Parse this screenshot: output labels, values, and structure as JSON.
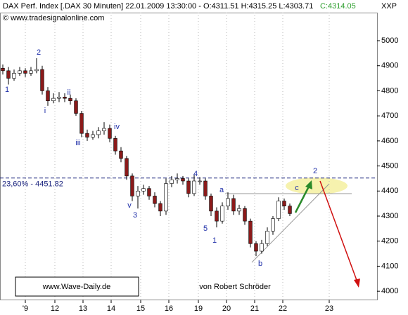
{
  "chart_data": {
    "type": "candlestick",
    "title": "DAX Perf. Index [.DAX  30 Minuten] 22.01.2009 13:30:00 - O:4311.51 H:4315.25 L:4303.71",
    "title_close": "C:4314.05",
    "symbol": "XXP",
    "source": "© www.tradesignalonline.com",
    "website": "www.Wave-Daily.de",
    "author": "von Robert Schröder",
    "fib_level": {
      "label": "23,60% - 4451.82",
      "value": 4451.82
    },
    "annotations": [
      "1",
      "2",
      "i",
      "ii",
      "iii",
      "iv",
      "v",
      "3",
      "4",
      "5",
      "1",
      "a",
      "b",
      "c",
      "2"
    ],
    "open": [
      4890,
      4880,
      4850,
      4870,
      4880,
      4870,
      4880,
      4885,
      4800,
      4760,
      4770,
      4775,
      4770,
      4760,
      4710,
      4630,
      4615,
      4625,
      4640,
      4650,
      4610,
      4560,
      4530,
      4460,
      4380,
      4400,
      4410,
      4380,
      4350,
      4320,
      4430,
      4445,
      4450,
      4440,
      4390,
      4440,
      4440,
      4380,
      4320,
      4280,
      4340,
      4370,
      4320,
      4330,
      4280,
      4190,
      4160,
      4190,
      4240,
      4290,
      4360,
      4340
    ],
    "high": [
      4905,
      4895,
      4885,
      4895,
      4890,
      4895,
      4930,
      4900,
      4815,
      4790,
      4795,
      4790,
      4785,
      4770,
      4720,
      4645,
      4640,
      4655,
      4675,
      4665,
      4620,
      4575,
      4540,
      4470,
      4420,
      4425,
      4420,
      4395,
      4360,
      4450,
      4460,
      4470,
      4460,
      4450,
      4465,
      4455,
      4450,
      4390,
      4335,
      4355,
      4395,
      4385,
      4345,
      4340,
      4290,
      4200,
      4205,
      4255,
      4300,
      4375,
      4370,
      4350
    ],
    "low": [
      4865,
      4825,
      4840,
      4860,
      4855,
      4860,
      4870,
      4785,
      4740,
      4750,
      4755,
      4755,
      4745,
      4700,
      4615,
      4600,
      4605,
      4610,
      4625,
      4595,
      4545,
      4515,
      4445,
      4360,
      4330,
      4385,
      4365,
      4335,
      4300,
      4305,
      4415,
      4430,
      4425,
      4375,
      4380,
      4425,
      4365,
      4300,
      4255,
      4270,
      4325,
      4305,
      4305,
      4265,
      4175,
      4140,
      4150,
      4180,
      4225,
      4280,
      4325,
      4300
    ],
    "close": [
      4880,
      4850,
      4870,
      4880,
      4870,
      4880,
      4885,
      4800,
      4760,
      4770,
      4775,
      4770,
      4760,
      4710,
      4630,
      4615,
      4625,
      4640,
      4650,
      4610,
      4560,
      4530,
      4460,
      4380,
      4400,
      4410,
      4380,
      4350,
      4320,
      4430,
      4445,
      4450,
      4440,
      4390,
      4440,
      4440,
      4380,
      4320,
      4280,
      4340,
      4370,
      4320,
      4330,
      4280,
      4190,
      4160,
      4190,
      4240,
      4290,
      4360,
      4340,
      4310
    ],
    "up_color": "#ffffff",
    "down_color": "#8b1a1a",
    "xlim": [
      0,
      67
    ],
    "xticks": [
      {
        "value": 4.5,
        "label": "'9"
      },
      {
        "value": 9.75,
        "label": "12"
      },
      {
        "value": 14.75,
        "label": "13"
      },
      {
        "value": 19.75,
        "label": "14"
      },
      {
        "value": 25,
        "label": "15"
      },
      {
        "value": 30,
        "label": "16"
      },
      {
        "value": 35.25,
        "label": "19"
      },
      {
        "value": 40.25,
        "label": "20"
      },
      {
        "value": 45.25,
        "label": "21"
      },
      {
        "value": 50.25,
        "label": "22"
      },
      {
        "value": 58.5,
        "label": "23"
      }
    ],
    "ylim": [
      3964,
      5112
    ],
    "yticks": [
      4000,
      4100,
      4200,
      4300,
      4400,
      4500,
      4600,
      4700,
      4800,
      4900,
      5000
    ],
    "grid": true
  }
}
